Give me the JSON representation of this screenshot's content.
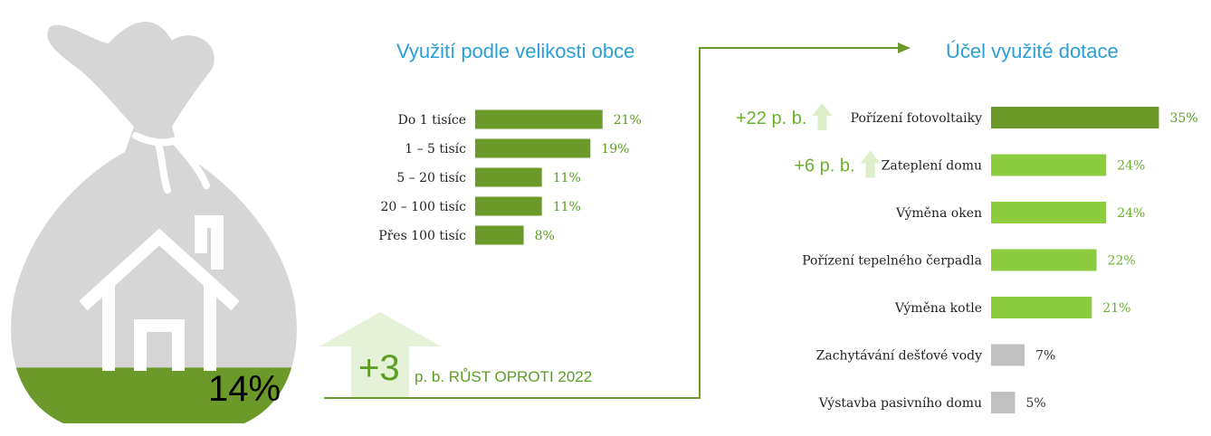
{
  "colors": {
    "dark_green": "#6b9a2a",
    "light_green": "#8ccc3e",
    "gray": "#c0c0c0",
    "bag_gray": "#d6d6d6",
    "title_blue": "#2a9fd6",
    "arrow_pale": "#e6f2d8"
  },
  "bag": {
    "percent_label": "14%",
    "fill_fraction": 0.14
  },
  "growth": {
    "number": "+3",
    "label": "p. b. RŮST OPROTI 2022"
  },
  "chart_data": [
    {
      "type": "bar",
      "orientation": "horizontal",
      "title": "Využití podle velikosti obce",
      "categories": [
        "Do 1 tisíce",
        "1 – 5 tisíc",
        "5 – 20 tisíc",
        "20 – 100 tisíc",
        "Přes 100 tisíc"
      ],
      "values": [
        21,
        19,
        11,
        11,
        8
      ],
      "value_labels": [
        "21%",
        "19%",
        "11%",
        "11%",
        "8%"
      ],
      "unit": "%",
      "grid": false
    },
    {
      "type": "bar",
      "orientation": "horizontal",
      "title": "Účel využité dotace",
      "categories": [
        "Pořízení fotovoltaiky",
        "Zateplení domu",
        "Výměna oken",
        "Pořízení tepelného čerpadla",
        "Výměna kotle",
        "Zachytávání dešťové vody",
        "Výstavba pasivního domu"
      ],
      "values": [
        35,
        24,
        24,
        22,
        21,
        7,
        5
      ],
      "value_labels": [
        "35%",
        "24%",
        "24%",
        "22%",
        "21%",
        "7%",
        "5%"
      ],
      "bar_colors": [
        "dark_green",
        "light_green",
        "light_green",
        "light_green",
        "light_green",
        "gray",
        "gray"
      ],
      "unit": "%",
      "grid": false,
      "annotations": [
        {
          "category": "Pořízení fotovoltaiky",
          "text": "+22 p. b."
        },
        {
          "category": "Zateplení domu",
          "text": "+6 p. b."
        }
      ]
    }
  ]
}
